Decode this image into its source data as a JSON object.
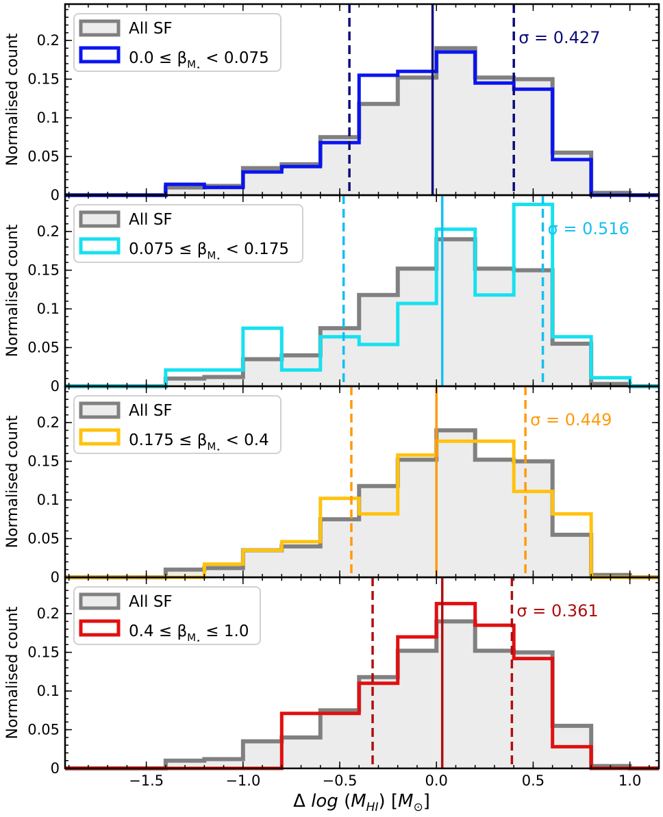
{
  "chart_data": {
    "type": "histogram",
    "xlabel": "Δ log (M_HI) [M_⊙]",
    "ylabel": "Normalised count",
    "xlim": [
      -1.92,
      1.15
    ],
    "ylim": [
      0,
      0.247
    ],
    "xticks": [
      -1.5,
      -1.0,
      -0.5,
      0.0,
      0.5,
      1.0
    ],
    "xtick_labels": [
      "−1.5",
      "−1.0",
      "−0.5",
      "0.0",
      "0.5",
      "1.0"
    ],
    "yticks": [
      0,
      0.05,
      0.1,
      0.15,
      0.2
    ],
    "ytick_labels": [
      "0",
      "0.05",
      "0.1",
      "0.15",
      "0.2"
    ],
    "bin_edges": [
      -1.4,
      -1.2,
      -1.0,
      -0.8,
      -0.6,
      -0.4,
      -0.2,
      0.0,
      0.2,
      0.4,
      0.6,
      0.8,
      1.0
    ],
    "reference": {
      "name": "All SF",
      "color": "#808080",
      "fill": "#ececec",
      "values": [
        0.01,
        0.012,
        0.035,
        0.04,
        0.075,
        0.118,
        0.152,
        0.19,
        0.152,
        0.15,
        0.055,
        0.003
      ]
    },
    "panels": [
      {
        "legend_main": "0.0 ≤ β",
        "legend_tail": " < 0.075",
        "color": "#0a14f0",
        "line_color": "#0c0c78",
        "sigma_label": "σ = 0.427",
        "median": -0.02,
        "sigma_lo": -0.45,
        "sigma_hi": 0.4,
        "values": [
          0.014,
          0.01,
          0.03,
          0.037,
          0.068,
          0.155,
          0.16,
          0.185,
          0.145,
          0.137,
          0.046,
          0.0
        ]
      },
      {
        "legend_main": "0.075 ≤ β",
        "legend_tail": " < 0.175",
        "color": "#17e0f0",
        "line_color": "#13bff2",
        "sigma_label": "σ = 0.516",
        "median": 0.03,
        "sigma_lo": -0.48,
        "sigma_hi": 0.55,
        "values": [
          0.021,
          0.021,
          0.075,
          0.021,
          0.064,
          0.054,
          0.107,
          0.203,
          0.118,
          0.235,
          0.064,
          0.011
        ]
      },
      {
        "legend_main": "0.175 ≤ β",
        "legend_tail": " < 0.4",
        "color": "#ffc20e",
        "line_color": "#ff9a0a",
        "sigma_label": "σ = 0.449",
        "median": 0.0,
        "sigma_lo": -0.44,
        "sigma_hi": 0.46,
        "values": [
          0.0,
          0.017,
          0.035,
          0.046,
          0.102,
          0.082,
          0.158,
          0.176,
          0.176,
          0.111,
          0.082,
          0.0
        ]
      },
      {
        "legend_main": "0.4 ≤ β",
        "legend_tail": " ≤ 1.0",
        "color": "#e01010",
        "line_color": "#b00d0d",
        "sigma_label": "σ = 0.361",
        "median": 0.03,
        "sigma_lo": -0.33,
        "sigma_hi": 0.39,
        "values": [
          0.0,
          0.0,
          0.0,
          0.071,
          0.071,
          0.11,
          0.17,
          0.213,
          0.185,
          0.142,
          0.028,
          0.0
        ]
      }
    ]
  }
}
